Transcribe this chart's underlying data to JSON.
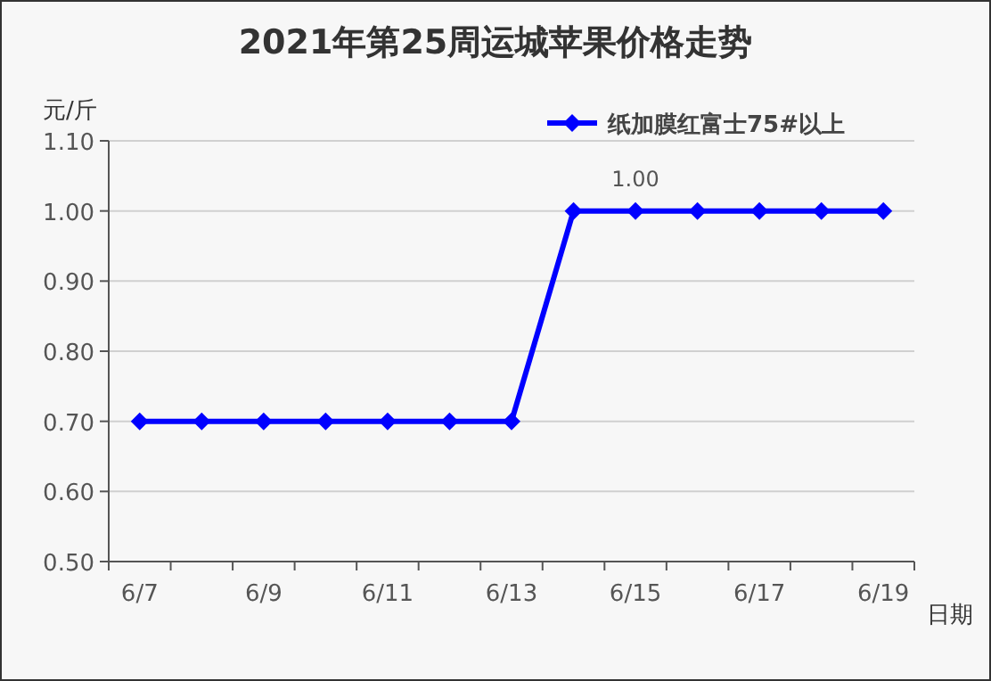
{
  "chart_data": {
    "type": "line",
    "title": "2021年第25周运城苹果价格走势",
    "ylabel": "元/斤",
    "xlabel": "日期",
    "categories": [
      "6/7",
      null,
      "6/9",
      null,
      "6/11",
      null,
      "6/13",
      null,
      "6/15",
      null,
      "6/17",
      null,
      "6/19"
    ],
    "series": [
      {
        "name": "纸加膜红富士75#以上",
        "color": "#0000ff",
        "values": [
          0.7,
          0.7,
          0.7,
          0.7,
          0.7,
          0.7,
          0.7,
          1.0,
          1.0,
          1.0,
          1.0,
          1.0,
          1.0
        ],
        "value_labels": [
          null,
          null,
          null,
          null,
          null,
          null,
          null,
          null,
          "1.00",
          null,
          null,
          null,
          null
        ]
      }
    ],
    "ylim": [
      0.5,
      1.1
    ],
    "yticks": [
      {
        "value": 0.5,
        "label": "0.50"
      },
      {
        "value": 0.6,
        "label": "0.60"
      },
      {
        "value": 0.7,
        "label": "0.70"
      },
      {
        "value": 0.8,
        "label": "0.80"
      },
      {
        "value": 0.9,
        "label": "0.90"
      },
      {
        "value": 1.0,
        "label": "1.00"
      },
      {
        "value": 1.1,
        "label": "1.10"
      }
    ],
    "grid": "y",
    "legend": "top right",
    "marker": "diamond",
    "line_style": "solid"
  }
}
